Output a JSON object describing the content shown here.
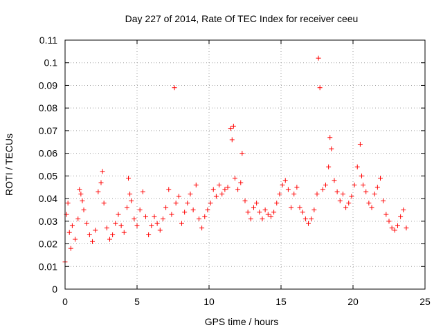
{
  "chart_data": {
    "type": "scatter",
    "title": "Day 227 of 2014, Rate Of TEC Index for receiver ceeu",
    "xlabel": "GPS time / hours",
    "ylabel": "ROTI / TECUs",
    "xlim": [
      0,
      25
    ],
    "ylim": [
      0,
      0.11
    ],
    "xticks": [
      0,
      5,
      10,
      15,
      20,
      25
    ],
    "xtick_labels": [
      "0",
      "5",
      "10",
      "15",
      "20",
      "25"
    ],
    "yticks": [
      0,
      0.01,
      0.02,
      0.03,
      0.04,
      0.05,
      0.06,
      0.07,
      0.08,
      0.09,
      0.1,
      0.11
    ],
    "ytick_labels": [
      "0",
      "0.01",
      "0.02",
      "0.03",
      "0.04",
      "0.05",
      "0.06",
      "0.07",
      "0.08",
      "0.09",
      "0.1",
      "0.11"
    ],
    "grid": true,
    "marker": "plus",
    "color": "#ff0000",
    "series": [
      {
        "name": "ROTI",
        "x": [
          0.0,
          0.1,
          0.2,
          0.3,
          0.4,
          0.5,
          0.7,
          0.9,
          1.0,
          1.1,
          1.2,
          1.3,
          1.5,
          1.7,
          1.9,
          2.1,
          2.3,
          2.5,
          2.6,
          2.7,
          2.9,
          3.1,
          3.3,
          3.5,
          3.7,
          3.9,
          4.1,
          4.3,
          4.4,
          4.5,
          4.6,
          4.8,
          5.0,
          5.2,
          5.4,
          5.6,
          5.8,
          6.0,
          6.2,
          6.4,
          6.6,
          6.8,
          7.0,
          7.2,
          7.4,
          7.6,
          7.7,
          7.9,
          8.1,
          8.3,
          8.5,
          8.7,
          8.9,
          9.1,
          9.3,
          9.5,
          9.7,
          9.9,
          10.1,
          10.3,
          10.5,
          10.7,
          10.9,
          11.1,
          11.3,
          11.5,
          11.6,
          11.7,
          11.8,
          12.0,
          12.2,
          12.3,
          12.5,
          12.7,
          12.9,
          13.1,
          13.3,
          13.5,
          13.7,
          13.9,
          14.1,
          14.3,
          14.5,
          14.7,
          14.9,
          15.1,
          15.3,
          15.5,
          15.7,
          15.9,
          16.1,
          16.3,
          16.5,
          16.7,
          16.9,
          17.1,
          17.3,
          17.5,
          17.6,
          17.7,
          17.9,
          18.1,
          18.3,
          18.4,
          18.5,
          18.7,
          18.9,
          19.1,
          19.3,
          19.5,
          19.7,
          19.9,
          20.1,
          20.3,
          20.5,
          20.6,
          20.7,
          20.9,
          21.1,
          21.3,
          21.5,
          21.7,
          21.9,
          22.1,
          22.3,
          22.5,
          22.7,
          22.9,
          23.1,
          23.3,
          23.5,
          23.7
        ],
        "y": [
          0.012,
          0.033,
          0.038,
          0.025,
          0.018,
          0.028,
          0.022,
          0.031,
          0.044,
          0.042,
          0.039,
          0.035,
          0.029,
          0.024,
          0.021,
          0.026,
          0.043,
          0.047,
          0.052,
          0.038,
          0.027,
          0.022,
          0.024,
          0.029,
          0.033,
          0.028,
          0.025,
          0.036,
          0.049,
          0.042,
          0.039,
          0.031,
          0.028,
          0.035,
          0.043,
          0.032,
          0.024,
          0.028,
          0.032,
          0.029,
          0.026,
          0.031,
          0.036,
          0.044,
          0.033,
          0.089,
          0.038,
          0.041,
          0.029,
          0.034,
          0.038,
          0.042,
          0.035,
          0.046,
          0.031,
          0.027,
          0.032,
          0.035,
          0.038,
          0.044,
          0.041,
          0.046,
          0.042,
          0.044,
          0.045,
          0.071,
          0.066,
          0.072,
          0.049,
          0.044,
          0.047,
          0.06,
          0.039,
          0.034,
          0.031,
          0.036,
          0.038,
          0.034,
          0.031,
          0.035,
          0.033,
          0.032,
          0.034,
          0.038,
          0.042,
          0.046,
          0.048,
          0.044,
          0.036,
          0.042,
          0.045,
          0.036,
          0.034,
          0.031,
          0.029,
          0.031,
          0.035,
          0.042,
          0.102,
          0.089,
          0.044,
          0.046,
          0.054,
          0.067,
          0.062,
          0.048,
          0.043,
          0.039,
          0.042,
          0.036,
          0.038,
          0.041,
          0.046,
          0.054,
          0.064,
          0.05,
          0.046,
          0.043,
          0.038,
          0.036,
          0.042,
          0.045,
          0.049,
          0.039,
          0.033,
          0.03,
          0.027,
          0.026,
          0.028,
          0.032,
          0.035,
          0.027
        ]
      }
    ]
  }
}
